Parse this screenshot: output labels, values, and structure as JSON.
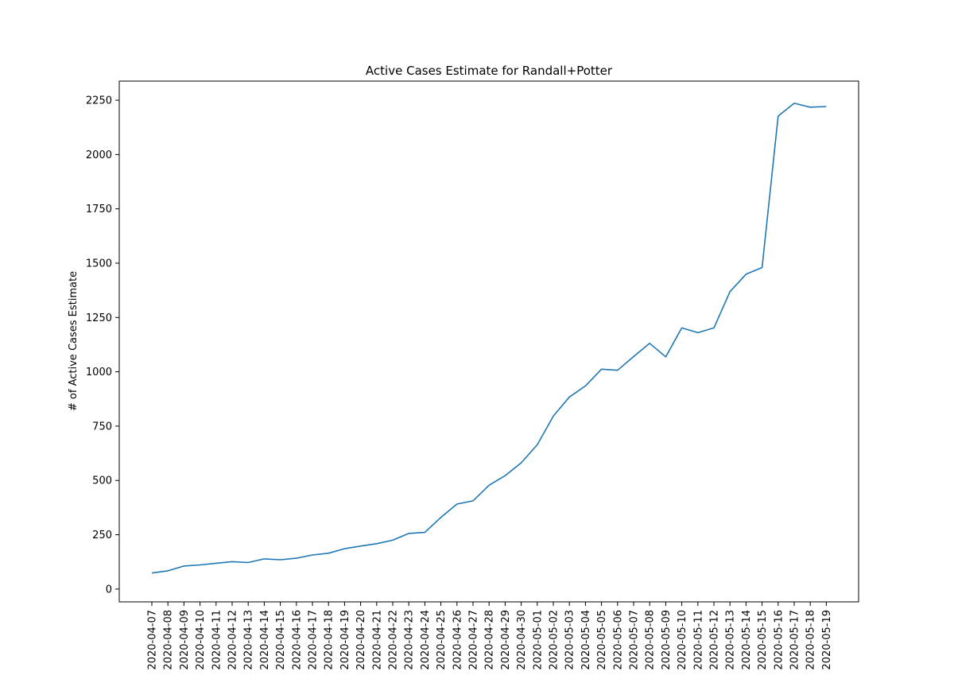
{
  "chart_data": {
    "type": "line",
    "title": "Active Cases Estimate for Randall+Potter",
    "xlabel": "",
    "ylabel": "# of Active Cases Estimate",
    "x": [
      "2020-04-07",
      "2020-04-08",
      "2020-04-09",
      "2020-04-10",
      "2020-04-11",
      "2020-04-12",
      "2020-04-13",
      "2020-04-14",
      "2020-04-15",
      "2020-04-16",
      "2020-04-17",
      "2020-04-18",
      "2020-04-19",
      "2020-04-20",
      "2020-04-21",
      "2020-04-22",
      "2020-04-23",
      "2020-04-24",
      "2020-04-25",
      "2020-04-26",
      "2020-04-27",
      "2020-04-28",
      "2020-04-29",
      "2020-04-30",
      "2020-05-01",
      "2020-05-02",
      "2020-05-03",
      "2020-05-04",
      "2020-05-05",
      "2020-05-06",
      "2020-05-07",
      "2020-05-08",
      "2020-05-09",
      "2020-05-10",
      "2020-05-11",
      "2020-05-12",
      "2020-05-13",
      "2020-05-14",
      "2020-05-15",
      "2020-05-16",
      "2020-05-17",
      "2020-05-18",
      "2020-05-19"
    ],
    "series": [
      {
        "color": "#1f77b4",
        "values": [
          74,
          84,
          106,
          111,
          119,
          126,
          122,
          139,
          135,
          142,
          157,
          165,
          186,
          198,
          209,
          225,
          256,
          261,
          330,
          391,
          406,
          478,
          522,
          581,
          664,
          796,
          884,
          935,
          1012,
          1007,
          1070,
          1131,
          1069,
          1202,
          1180,
          1202,
          1369,
          1449,
          1480,
          2177,
          2236,
          2218,
          2221
        ]
      }
    ],
    "ylim": [
      -59,
      2338
    ],
    "yticks": [
      0,
      250,
      500,
      750,
      1000,
      1250,
      1500,
      1750,
      2000,
      2250
    ],
    "grid": false,
    "legend": "none"
  }
}
